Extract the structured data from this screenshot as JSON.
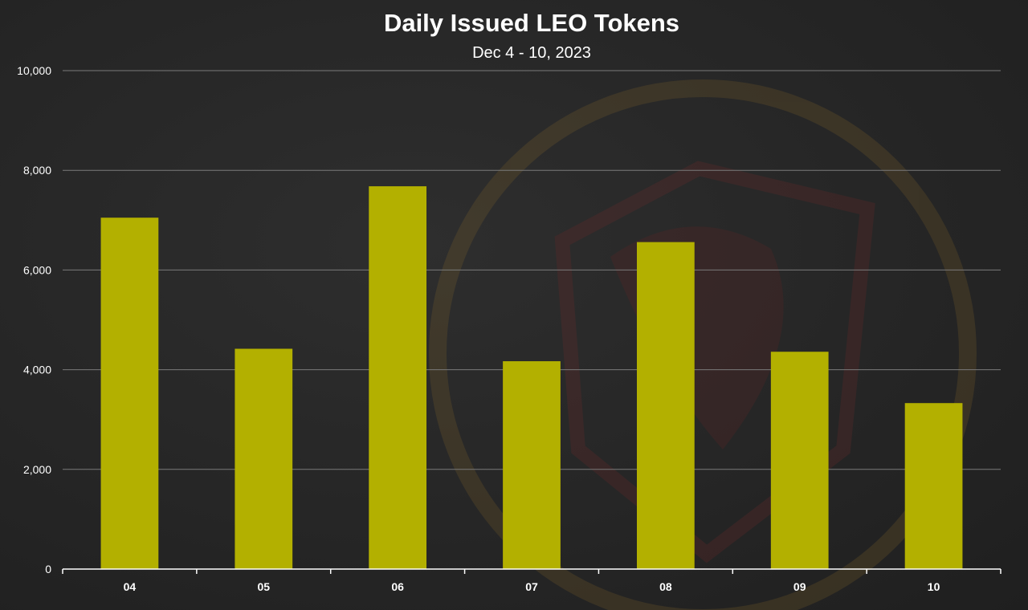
{
  "chart_data": {
    "type": "bar",
    "title": "Daily Issued LEO Tokens",
    "subtitle": "Dec 4 - 10, 2023",
    "xlabel": "",
    "ylabel": "",
    "categories": [
      "04",
      "05",
      "06",
      "07",
      "08",
      "09",
      "10"
    ],
    "values": [
      7050,
      4420,
      7680,
      4170,
      6560,
      4360,
      3330
    ],
    "ylim": [
      0,
      10000
    ],
    "yticks": [
      0,
      2000,
      4000,
      6000,
      8000,
      10000
    ],
    "ytick_labels": [
      "0",
      "2,000",
      "4,000",
      "6,000",
      "8,000",
      "10,000"
    ],
    "grid": true,
    "legend": "none",
    "colors": {
      "bar": "#b3b000",
      "background": "#262626",
      "gridline": "#7a7a7a",
      "text": "#ffffff",
      "watermark": "#7a5a2a"
    }
  }
}
